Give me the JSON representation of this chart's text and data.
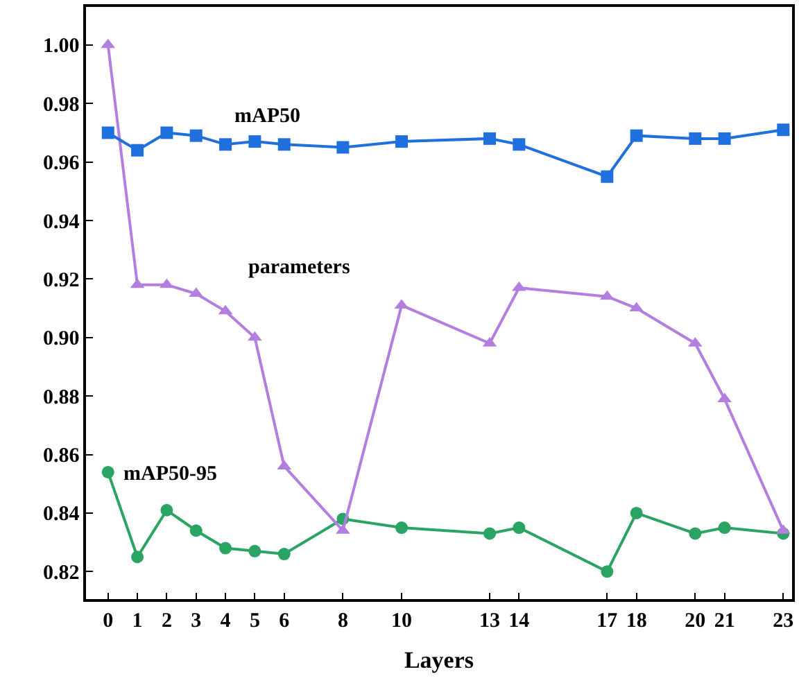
{
  "chart_data": {
    "type": "line",
    "xlabel": "Layers",
    "x": [
      0,
      1,
      2,
      3,
      4,
      5,
      6,
      8,
      10,
      13,
      14,
      17,
      18,
      20,
      21,
      23
    ],
    "series": [
      {
        "name": "mAP50",
        "color": "#1f6fde",
        "marker": "square",
        "values": [
          0.97,
          0.964,
          0.97,
          0.969,
          0.966,
          0.967,
          0.966,
          0.965,
          0.967,
          0.968,
          0.966,
          0.955,
          0.969,
          0.968,
          0.968,
          0.971
        ]
      },
      {
        "name": "parameters",
        "color": "#b27ee0",
        "marker": "triangle",
        "values": [
          1.0,
          0.918,
          0.918,
          0.915,
          0.909,
          0.9,
          0.856,
          0.834,
          0.911,
          0.898,
          0.917,
          0.914,
          0.91,
          0.898,
          0.879,
          0.834
        ]
      },
      {
        "name": "mAP50-95",
        "color": "#2aa462",
        "marker": "circle",
        "values": [
          0.854,
          0.825,
          0.841,
          0.834,
          0.828,
          0.827,
          0.826,
          0.838,
          0.835,
          0.833,
          0.835,
          0.82,
          0.84,
          0.833,
          0.835,
          0.833
        ]
      }
    ],
    "xlim": [
      -0.75,
      23.3
    ],
    "xticks": [
      0,
      1,
      2,
      3,
      4,
      5,
      6,
      8,
      10,
      13,
      14,
      17,
      18,
      20,
      21,
      23
    ],
    "ylim": [
      0.8106,
      1.013
    ],
    "yticks": [
      {
        "value": 0.82,
        "label": "0.82"
      },
      {
        "value": 0.84,
        "label": "0.84"
      },
      {
        "value": 0.86,
        "label": "0.86"
      },
      {
        "value": 0.88,
        "label": "0.88"
      },
      {
        "value": 0.9,
        "label": "0.90"
      },
      {
        "value": 0.92,
        "label": "0.92"
      },
      {
        "value": 0.94,
        "label": "0.94"
      },
      {
        "value": 0.96,
        "label": "0.96"
      },
      {
        "value": 0.98,
        "label": "0.98"
      },
      {
        "value": 1.0,
        "label": "1.00"
      }
    ],
    "legend": false,
    "line_style": "solid"
  }
}
